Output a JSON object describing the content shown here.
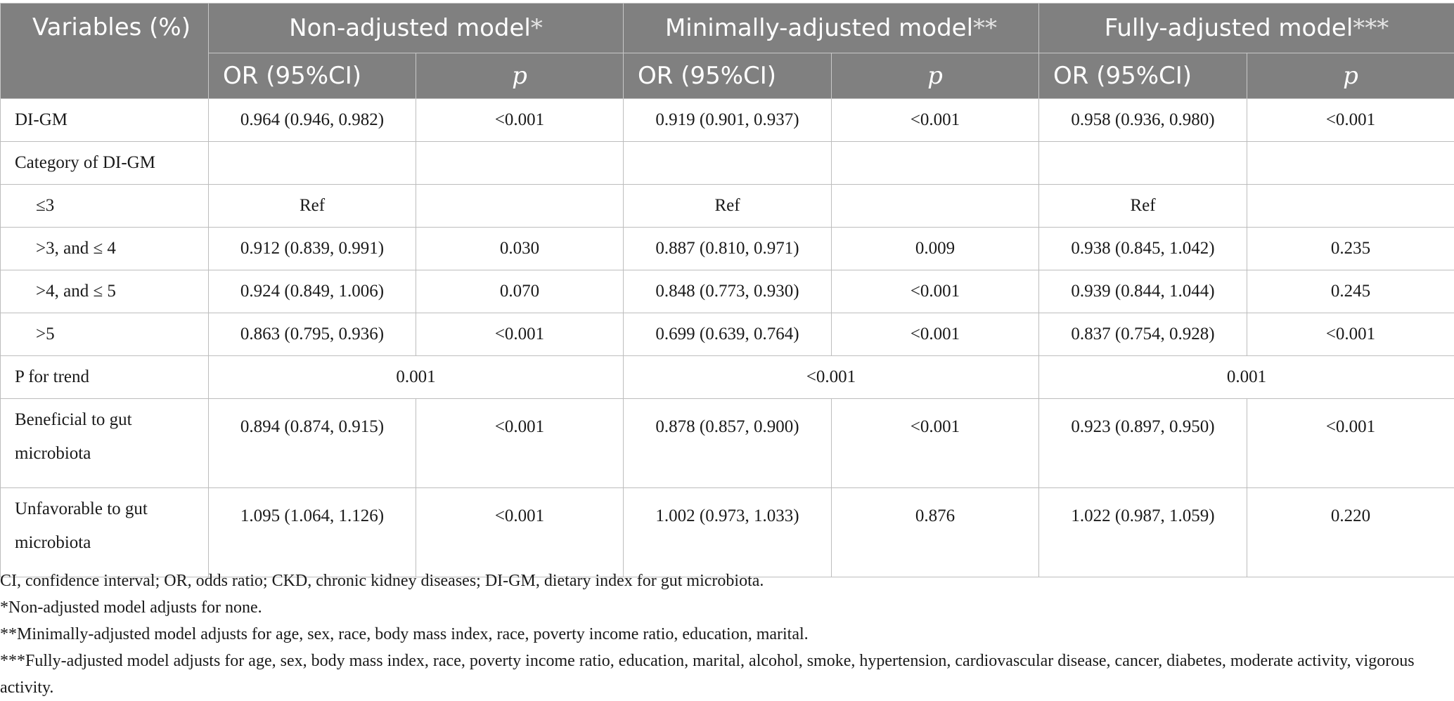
{
  "header": {
    "corner": "Variables (%)",
    "groups": [
      {
        "name": "Non-adjusted model",
        "star": "*"
      },
      {
        "name": "Minimally-adjusted model",
        "star": "**"
      },
      {
        "name": "Fully-adjusted model",
        "star": "***"
      }
    ],
    "or_label": "OR (95%CI)",
    "p_label": "p"
  },
  "rows": {
    "digm": {
      "label": "DI-GM",
      "v": [
        "0.964 (0.946, 0.982)",
        "<0.001",
        "0.919 (0.901, 0.937)",
        "<0.001",
        "0.958 (0.936, 0.980)",
        "<0.001"
      ]
    },
    "category": {
      "label": "Category of DI-GM"
    },
    "le3": {
      "label": "≤3",
      "v": [
        "Ref",
        "",
        "Ref",
        "",
        "Ref",
        ""
      ]
    },
    "r3to4": {
      "label": ">3, and ≤ 4",
      "v": [
        "0.912 (0.839, 0.991)",
        "0.030",
        "0.887 (0.810, 0.971)",
        "0.009",
        "0.938 (0.845, 1.042)",
        "0.235"
      ]
    },
    "r4to5": {
      "label": ">4, and ≤ 5",
      "v": [
        "0.924 (0.849, 1.006)",
        "0.070",
        "0.848 (0.773, 0.930)",
        "<0.001",
        "0.939 (0.844, 1.044)",
        "0.245"
      ]
    },
    "gt5": {
      "label": ">5",
      "v": [
        "0.863 (0.795, 0.936)",
        "<0.001",
        "0.699 (0.639, 0.764)",
        "<0.001",
        "0.837 (0.754, 0.928)",
        "<0.001"
      ]
    },
    "trend": {
      "label": "P for trend",
      "v": [
        "0.001",
        "<0.001",
        "0.001"
      ]
    },
    "beneficial": {
      "label": "Beneficial to gut microbiota",
      "v": [
        "0.894 (0.874, 0.915)",
        "<0.001",
        "0.878 (0.857, 0.900)",
        "<0.001",
        "0.923 (0.897, 0.950)",
        "<0.001"
      ]
    },
    "unfavorable": {
      "label": "Unfavorable to gut microbiota",
      "v": [
        "1.095 (1.064, 1.126)",
        "<0.001",
        "1.002 (0.973, 1.033)",
        "0.876",
        "1.022 (0.987, 1.059)",
        "0.220"
      ]
    }
  },
  "footnotes": [
    "CI, confidence interval; OR, odds ratio; CKD, chronic kidney diseases; DI-GM, dietary index for gut microbiota.",
    "*Non-adjusted model adjusts for none.",
    "**Minimally-adjusted model adjusts for age, sex, race, body mass index, race, poverty income ratio, education, marital.",
    "***Fully-adjusted model adjusts for age, sex, body mass index, race, poverty income ratio, education, marital, alcohol, smoke, hypertension, cardiovascular disease, cancer, diabetes, moderate activity, vigorous activity."
  ]
}
